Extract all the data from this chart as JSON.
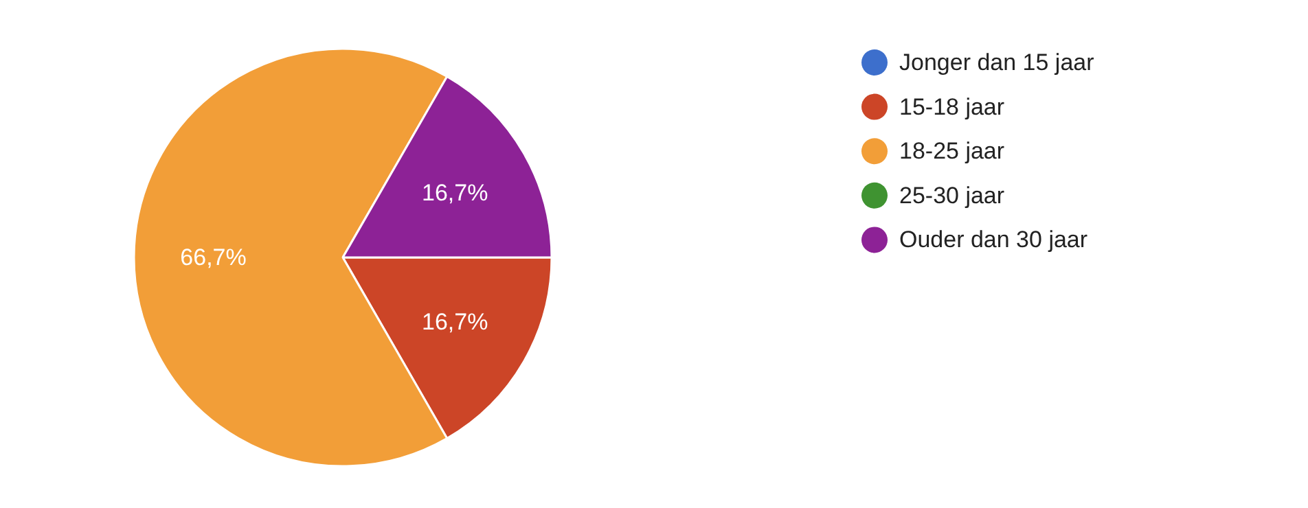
{
  "chart_data": {
    "type": "pie",
    "categories": [
      "Jonger dan 15 jaar",
      "15-18 jaar",
      "18-25 jaar",
      "25-30 jaar",
      "Ouder dan 30 jaar"
    ],
    "values": [
      0,
      16.7,
      66.7,
      0,
      16.7
    ],
    "colors": [
      "#3d6fcc",
      "#cc4527",
      "#f29e38",
      "#3f9331",
      "#8d2296"
    ],
    "value_labels": [
      null,
      "16,7%",
      "66,7%",
      null,
      "16,7%"
    ],
    "legend": "right"
  }
}
